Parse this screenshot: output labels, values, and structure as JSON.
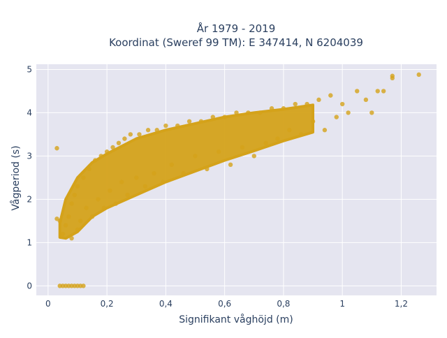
{
  "chart_data": {
    "type": "scatter",
    "title_line1": "År 1979 - 2019",
    "title_line2": "Koordinat (Sweref 99 TM): E 347414, N 6204039",
    "xlabel": "Signifikant våghöjd (m)",
    "ylabel": "Vågperiod (s)",
    "xlim": [
      -0.04,
      1.32
    ],
    "ylim": [
      -0.22,
      5.12
    ],
    "x_ticks": [
      0,
      0.2,
      0.4,
      0.6,
      0.8,
      1.0,
      1.2
    ],
    "x_tick_labels": [
      "0",
      "0,2",
      "0,4",
      "0,6",
      "0,8",
      "1",
      "1,2"
    ],
    "y_ticks": [
      0,
      1,
      2,
      3,
      4,
      5
    ],
    "y_tick_labels": [
      "0",
      "1",
      "2",
      "3",
      "4",
      "5"
    ],
    "grid": true,
    "legend": "none",
    "marker_color": "#d4a21a",
    "plot_background": "#e5e5f0",
    "series": [
      {
        "values": [
          {
            "x": 0.04,
            "y": 1.5
          },
          {
            "x": 0.05,
            "y": 1.2
          },
          {
            "x": 0.06,
            "y": 1.4
          },
          {
            "x": 0.07,
            "y": 1.6
          },
          {
            "x": 0.08,
            "y": 1.1
          },
          {
            "x": 0.08,
            "y": 1.9
          },
          {
            "x": 0.09,
            "y": 2.1
          },
          {
            "x": 0.1,
            "y": 1.3
          },
          {
            "x": 0.1,
            "y": 2.3
          },
          {
            "x": 0.11,
            "y": 1.5
          },
          {
            "x": 0.12,
            "y": 2.5
          },
          {
            "x": 0.13,
            "y": 1.8
          },
          {
            "x": 0.14,
            "y": 2.7
          },
          {
            "x": 0.15,
            "y": 1.6
          },
          {
            "x": 0.16,
            "y": 2.9
          },
          {
            "x": 0.17,
            "y": 2.0
          },
          {
            "x": 0.18,
            "y": 3.0
          },
          {
            "x": 0.19,
            "y": 1.8
          },
          {
            "x": 0.2,
            "y": 3.1
          },
          {
            "x": 0.21,
            "y": 2.2
          },
          {
            "x": 0.22,
            "y": 3.2
          },
          {
            "x": 0.23,
            "y": 1.9
          },
          {
            "x": 0.24,
            "y": 3.3
          },
          {
            "x": 0.25,
            "y": 2.4
          },
          {
            "x": 0.26,
            "y": 3.4
          },
          {
            "x": 0.27,
            "y": 2.1
          },
          {
            "x": 0.28,
            "y": 3.5
          },
          {
            "x": 0.3,
            "y": 2.5
          },
          {
            "x": 0.31,
            "y": 3.5
          },
          {
            "x": 0.33,
            "y": 2.3
          },
          {
            "x": 0.34,
            "y": 3.6
          },
          {
            "x": 0.36,
            "y": 2.6
          },
          {
            "x": 0.37,
            "y": 3.6
          },
          {
            "x": 0.39,
            "y": 2.4
          },
          {
            "x": 0.4,
            "y": 3.7
          },
          {
            "x": 0.42,
            "y": 2.8
          },
          {
            "x": 0.44,
            "y": 3.7
          },
          {
            "x": 0.46,
            "y": 2.6
          },
          {
            "x": 0.48,
            "y": 3.8
          },
          {
            "x": 0.5,
            "y": 3.0
          },
          {
            "x": 0.52,
            "y": 3.8
          },
          {
            "x": 0.54,
            "y": 2.7
          },
          {
            "x": 0.56,
            "y": 3.9
          },
          {
            "x": 0.58,
            "y": 3.1
          },
          {
            "x": 0.6,
            "y": 3.9
          },
          {
            "x": 0.62,
            "y": 2.8
          },
          {
            "x": 0.64,
            "y": 4.0
          },
          {
            "x": 0.66,
            "y": 3.2
          },
          {
            "x": 0.68,
            "y": 4.0
          },
          {
            "x": 0.7,
            "y": 3.0
          },
          {
            "x": 0.72,
            "y": 4.0
          },
          {
            "x": 0.74,
            "y": 3.3
          },
          {
            "x": 0.76,
            "y": 4.1
          },
          {
            "x": 0.78,
            "y": 3.4
          },
          {
            "x": 0.8,
            "y": 4.1
          },
          {
            "x": 0.82,
            "y": 3.6
          },
          {
            "x": 0.84,
            "y": 4.2
          },
          {
            "x": 0.86,
            "y": 3.5
          },
          {
            "x": 0.88,
            "y": 4.2
          },
          {
            "x": 0.9,
            "y": 3.8
          },
          {
            "x": 0.92,
            "y": 4.3
          },
          {
            "x": 0.94,
            "y": 3.6
          },
          {
            "x": 0.96,
            "y": 4.4
          },
          {
            "x": 0.98,
            "y": 3.9
          },
          {
            "x": 1.0,
            "y": 4.2
          },
          {
            "x": 1.02,
            "y": 4.0
          },
          {
            "x": 1.05,
            "y": 4.5
          },
          {
            "x": 1.08,
            "y": 4.3
          },
          {
            "x": 1.1,
            "y": 4.0
          },
          {
            "x": 1.12,
            "y": 4.5
          },
          {
            "x": 1.14,
            "y": 4.5
          },
          {
            "x": 1.17,
            "y": 4.8
          },
          {
            "x": 1.17,
            "y": 4.85
          },
          {
            "x": 1.26,
            "y": 4.88
          },
          {
            "x": 0.03,
            "y": 3.18
          },
          {
            "x": 0.03,
            "y": 1.55
          },
          {
            "x": 0.04,
            "y": 0
          },
          {
            "x": 0.05,
            "y": 0
          },
          {
            "x": 0.06,
            "y": 0
          },
          {
            "x": 0.07,
            "y": 0
          },
          {
            "x": 0.08,
            "y": 0
          },
          {
            "x": 0.09,
            "y": 0
          },
          {
            "x": 0.1,
            "y": 0
          },
          {
            "x": 0.11,
            "y": 0
          },
          {
            "x": 0.12,
            "y": 0
          }
        ]
      }
    ]
  }
}
